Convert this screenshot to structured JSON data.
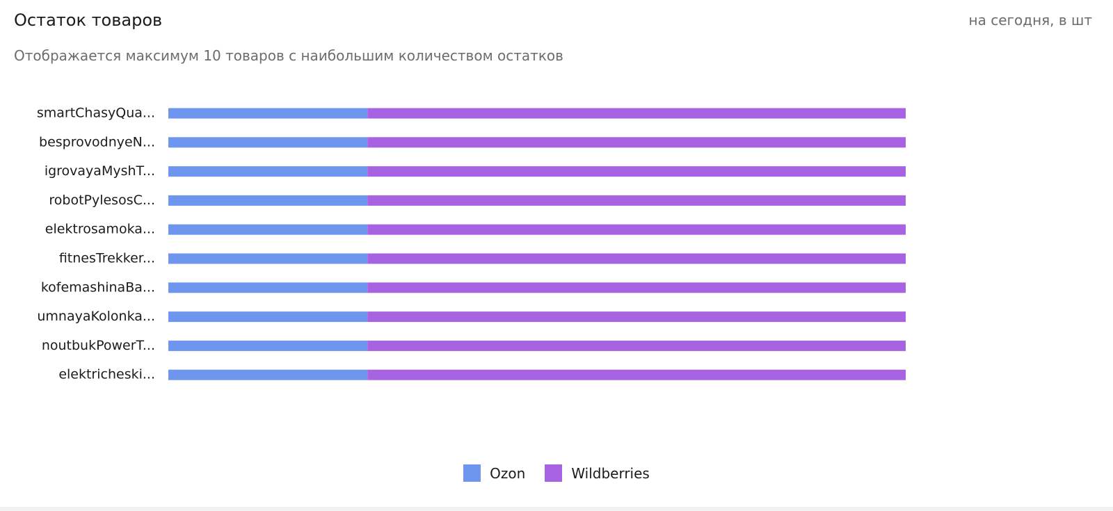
{
  "card": {
    "title": "Остаток товаров",
    "unit_note": "на сегодня, в шт",
    "subtitle": "Отображается максимум 10 товаров с наибольшим количеством остатков"
  },
  "chart_data": {
    "type": "bar",
    "orientation": "horizontal",
    "stacked": true,
    "categories": [
      "smartChasyQua...",
      "besprovodnyeN...",
      "igrovayaMyshT...",
      "robotPylesosC...",
      "elektrosamoka...",
      "fitnesTrekker...",
      "kofemashinaBa...",
      "umnayaKolonka...",
      "noutbukPowerT...",
      "elektricheski..."
    ],
    "series": [
      {
        "name": "Ozon",
        "color": "#6e96ef",
        "values": [
          0.27,
          0.27,
          0.27,
          0.27,
          0.27,
          0.27,
          0.27,
          0.27,
          0.27,
          0.27
        ]
      },
      {
        "name": "Wildberries",
        "color": "#a863e2",
        "values": [
          0.73,
          0.73,
          0.73,
          0.73,
          0.73,
          0.73,
          0.73,
          0.73,
          0.73,
          0.73
        ]
      }
    ],
    "value_note": "relative share of bar length; no axis scale is shown",
    "xlim": [
      0,
      1
    ],
    "grid": false,
    "legend_position": "bottom-center"
  },
  "legend": [
    {
      "label": "Ozon",
      "color": "#6e96ef"
    },
    {
      "label": "Wildberries",
      "color": "#a863e2"
    }
  ]
}
